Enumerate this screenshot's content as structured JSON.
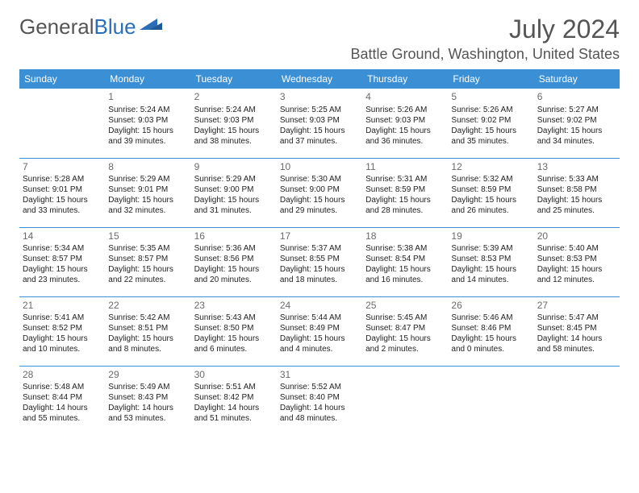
{
  "logo": {
    "text1": "General",
    "text2": "Blue"
  },
  "title": "July 2024",
  "location": "Battle Ground, Washington, United States",
  "colors": {
    "header_bg": "#3b8fd4",
    "header_text": "#ffffff",
    "divider": "#3b8fd4",
    "logo_gray": "#555555",
    "logo_blue": "#2a6fb5"
  },
  "weekdays": [
    "Sunday",
    "Monday",
    "Tuesday",
    "Wednesday",
    "Thursday",
    "Friday",
    "Saturday"
  ],
  "weeks": [
    [
      {
        "day": "",
        "sunrise": "",
        "sunset": "",
        "daylight": ""
      },
      {
        "day": "1",
        "sunrise": "Sunrise: 5:24 AM",
        "sunset": "Sunset: 9:03 PM",
        "daylight": "Daylight: 15 hours and 39 minutes."
      },
      {
        "day": "2",
        "sunrise": "Sunrise: 5:24 AM",
        "sunset": "Sunset: 9:03 PM",
        "daylight": "Daylight: 15 hours and 38 minutes."
      },
      {
        "day": "3",
        "sunrise": "Sunrise: 5:25 AM",
        "sunset": "Sunset: 9:03 PM",
        "daylight": "Daylight: 15 hours and 37 minutes."
      },
      {
        "day": "4",
        "sunrise": "Sunrise: 5:26 AM",
        "sunset": "Sunset: 9:03 PM",
        "daylight": "Daylight: 15 hours and 36 minutes."
      },
      {
        "day": "5",
        "sunrise": "Sunrise: 5:26 AM",
        "sunset": "Sunset: 9:02 PM",
        "daylight": "Daylight: 15 hours and 35 minutes."
      },
      {
        "day": "6",
        "sunrise": "Sunrise: 5:27 AM",
        "sunset": "Sunset: 9:02 PM",
        "daylight": "Daylight: 15 hours and 34 minutes."
      }
    ],
    [
      {
        "day": "7",
        "sunrise": "Sunrise: 5:28 AM",
        "sunset": "Sunset: 9:01 PM",
        "daylight": "Daylight: 15 hours and 33 minutes."
      },
      {
        "day": "8",
        "sunrise": "Sunrise: 5:29 AM",
        "sunset": "Sunset: 9:01 PM",
        "daylight": "Daylight: 15 hours and 32 minutes."
      },
      {
        "day": "9",
        "sunrise": "Sunrise: 5:29 AM",
        "sunset": "Sunset: 9:00 PM",
        "daylight": "Daylight: 15 hours and 31 minutes."
      },
      {
        "day": "10",
        "sunrise": "Sunrise: 5:30 AM",
        "sunset": "Sunset: 9:00 PM",
        "daylight": "Daylight: 15 hours and 29 minutes."
      },
      {
        "day": "11",
        "sunrise": "Sunrise: 5:31 AM",
        "sunset": "Sunset: 8:59 PM",
        "daylight": "Daylight: 15 hours and 28 minutes."
      },
      {
        "day": "12",
        "sunrise": "Sunrise: 5:32 AM",
        "sunset": "Sunset: 8:59 PM",
        "daylight": "Daylight: 15 hours and 26 minutes."
      },
      {
        "day": "13",
        "sunrise": "Sunrise: 5:33 AM",
        "sunset": "Sunset: 8:58 PM",
        "daylight": "Daylight: 15 hours and 25 minutes."
      }
    ],
    [
      {
        "day": "14",
        "sunrise": "Sunrise: 5:34 AM",
        "sunset": "Sunset: 8:57 PM",
        "daylight": "Daylight: 15 hours and 23 minutes."
      },
      {
        "day": "15",
        "sunrise": "Sunrise: 5:35 AM",
        "sunset": "Sunset: 8:57 PM",
        "daylight": "Daylight: 15 hours and 22 minutes."
      },
      {
        "day": "16",
        "sunrise": "Sunrise: 5:36 AM",
        "sunset": "Sunset: 8:56 PM",
        "daylight": "Daylight: 15 hours and 20 minutes."
      },
      {
        "day": "17",
        "sunrise": "Sunrise: 5:37 AM",
        "sunset": "Sunset: 8:55 PM",
        "daylight": "Daylight: 15 hours and 18 minutes."
      },
      {
        "day": "18",
        "sunrise": "Sunrise: 5:38 AM",
        "sunset": "Sunset: 8:54 PM",
        "daylight": "Daylight: 15 hours and 16 minutes."
      },
      {
        "day": "19",
        "sunrise": "Sunrise: 5:39 AM",
        "sunset": "Sunset: 8:53 PM",
        "daylight": "Daylight: 15 hours and 14 minutes."
      },
      {
        "day": "20",
        "sunrise": "Sunrise: 5:40 AM",
        "sunset": "Sunset: 8:53 PM",
        "daylight": "Daylight: 15 hours and 12 minutes."
      }
    ],
    [
      {
        "day": "21",
        "sunrise": "Sunrise: 5:41 AM",
        "sunset": "Sunset: 8:52 PM",
        "daylight": "Daylight: 15 hours and 10 minutes."
      },
      {
        "day": "22",
        "sunrise": "Sunrise: 5:42 AM",
        "sunset": "Sunset: 8:51 PM",
        "daylight": "Daylight: 15 hours and 8 minutes."
      },
      {
        "day": "23",
        "sunrise": "Sunrise: 5:43 AM",
        "sunset": "Sunset: 8:50 PM",
        "daylight": "Daylight: 15 hours and 6 minutes."
      },
      {
        "day": "24",
        "sunrise": "Sunrise: 5:44 AM",
        "sunset": "Sunset: 8:49 PM",
        "daylight": "Daylight: 15 hours and 4 minutes."
      },
      {
        "day": "25",
        "sunrise": "Sunrise: 5:45 AM",
        "sunset": "Sunset: 8:47 PM",
        "daylight": "Daylight: 15 hours and 2 minutes."
      },
      {
        "day": "26",
        "sunrise": "Sunrise: 5:46 AM",
        "sunset": "Sunset: 8:46 PM",
        "daylight": "Daylight: 15 hours and 0 minutes."
      },
      {
        "day": "27",
        "sunrise": "Sunrise: 5:47 AM",
        "sunset": "Sunset: 8:45 PM",
        "daylight": "Daylight: 14 hours and 58 minutes."
      }
    ],
    [
      {
        "day": "28",
        "sunrise": "Sunrise: 5:48 AM",
        "sunset": "Sunset: 8:44 PM",
        "daylight": "Daylight: 14 hours and 55 minutes."
      },
      {
        "day": "29",
        "sunrise": "Sunrise: 5:49 AM",
        "sunset": "Sunset: 8:43 PM",
        "daylight": "Daylight: 14 hours and 53 minutes."
      },
      {
        "day": "30",
        "sunrise": "Sunrise: 5:51 AM",
        "sunset": "Sunset: 8:42 PM",
        "daylight": "Daylight: 14 hours and 51 minutes."
      },
      {
        "day": "31",
        "sunrise": "Sunrise: 5:52 AM",
        "sunset": "Sunset: 8:40 PM",
        "daylight": "Daylight: 14 hours and 48 minutes."
      },
      {
        "day": "",
        "sunrise": "",
        "sunset": "",
        "daylight": ""
      },
      {
        "day": "",
        "sunrise": "",
        "sunset": "",
        "daylight": ""
      },
      {
        "day": "",
        "sunrise": "",
        "sunset": "",
        "daylight": ""
      }
    ]
  ]
}
